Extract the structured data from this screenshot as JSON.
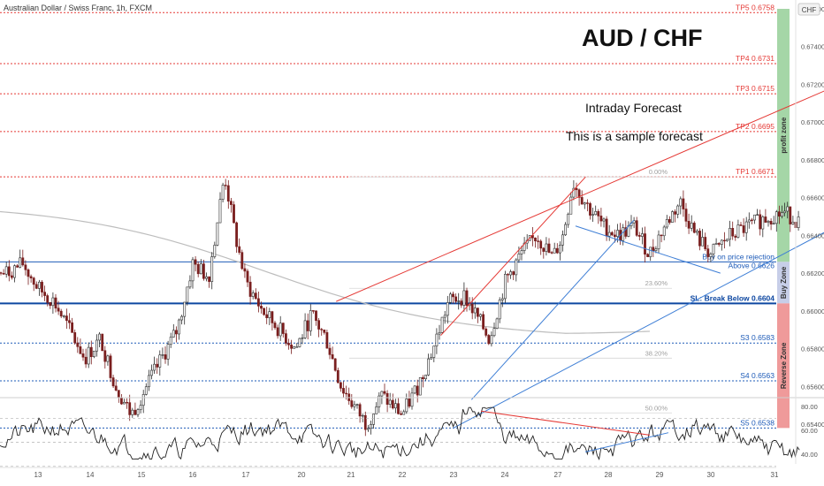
{
  "header": {
    "symbol_line": "Australian Dollar / Swiss Franc, 1h, FXCM",
    "currency_badge": "CHF"
  },
  "annotations": {
    "big_title": "AUD / CHF",
    "subtitle_1": "Intraday Forecast",
    "subtitle_2": "This is a sample forecast"
  },
  "chart_data": [
    {
      "type": "candlestick",
      "title": "AUD / CHF",
      "symbol": "Australian Dollar / Swiss Franc",
      "interval": "1h",
      "source": "FXCM",
      "ylim": [
        0.6535,
        0.676
      ],
      "y_ticks": [
        "0.67600",
        "0.67400",
        "0.67200",
        "0.67000",
        "0.66800",
        "0.66600",
        "0.66400",
        "0.66200",
        "0.66000",
        "0.65800",
        "0.65600",
        "0.65400"
      ],
      "y_tick_values": [
        0.676,
        0.674,
        0.672,
        0.67,
        0.668,
        0.666,
        0.664,
        0.662,
        0.66,
        0.658,
        0.656,
        0.654
      ],
      "x_ticks": [
        "13",
        "14",
        "15",
        "16",
        "17",
        "20",
        "21",
        "22",
        "23",
        "24",
        "27",
        "28",
        "29",
        "30",
        "31"
      ],
      "x_tick_days": [
        13,
        14,
        15,
        16,
        17,
        20,
        21,
        22,
        23,
        24,
        27,
        28,
        29,
        30,
        31
      ],
      "close_path": [
        {
          "d": 12.4,
          "v": 0.662
        },
        {
          "d": 12.7,
          "v": 0.6625
        },
        {
          "d": 13.0,
          "v": 0.6612
        },
        {
          "d": 13.3,
          "v": 0.6605
        },
        {
          "d": 13.6,
          "v": 0.659
        },
        {
          "d": 13.9,
          "v": 0.6575
        },
        {
          "d": 14.2,
          "v": 0.6585
        },
        {
          "d": 14.5,
          "v": 0.656
        },
        {
          "d": 14.8,
          "v": 0.6545
        },
        {
          "d": 15.1,
          "v": 0.656
        },
        {
          "d": 15.4,
          "v": 0.6575
        },
        {
          "d": 15.7,
          "v": 0.659
        },
        {
          "d": 16.0,
          "v": 0.6625
        },
        {
          "d": 16.3,
          "v": 0.6618
        },
        {
          "d": 16.6,
          "v": 0.6672
        },
        {
          "d": 16.8,
          "v": 0.664
        },
        {
          "d": 17.0,
          "v": 0.6615
        },
        {
          "d": 17.3,
          "v": 0.66
        },
        {
          "d": 17.6,
          "v": 0.659
        },
        {
          "d": 17.9,
          "v": 0.658
        },
        {
          "d": 18.2,
          "v": 0.6598
        },
        {
          "d": 18.5,
          "v": 0.6585
        },
        {
          "d": 18.8,
          "v": 0.656
        },
        {
          "d": 19.1,
          "v": 0.6548
        },
        {
          "d": 19.3,
          "v": 0.654
        },
        {
          "d": 19.6,
          "v": 0.6555
        },
        {
          "d": 20.0,
          "v": 0.6545
        },
        {
          "d": 20.3,
          "v": 0.656
        },
        {
          "d": 20.6,
          "v": 0.658
        },
        {
          "d": 20.9,
          "v": 0.6605
        },
        {
          "d": 21.2,
          "v": 0.6608
        },
        {
          "d": 21.5,
          "v": 0.6595
        },
        {
          "d": 21.7,
          "v": 0.6585
        },
        {
          "d": 22.0,
          "v": 0.6615
        },
        {
          "d": 22.3,
          "v": 0.663
        },
        {
          "d": 22.6,
          "v": 0.664
        },
        {
          "d": 22.9,
          "v": 0.6628
        },
        {
          "d": 23.1,
          "v": 0.664
        },
        {
          "d": 23.3,
          "v": 0.6668
        },
        {
          "d": 23.6,
          "v": 0.6655
        },
        {
          "d": 23.9,
          "v": 0.6645
        },
        {
          "d": 24.2,
          "v": 0.664
        },
        {
          "d": 24.5,
          "v": 0.6645
        },
        {
          "d": 24.8,
          "v": 0.663
        },
        {
          "d": 25.1,
          "v": 0.6645
        },
        {
          "d": 25.4,
          "v": 0.6658
        },
        {
          "d": 25.7,
          "v": 0.664
        },
        {
          "d": 26.0,
          "v": 0.663
        },
        {
          "d": 26.3,
          "v": 0.664
        },
        {
          "d": 26.6,
          "v": 0.6645
        },
        {
          "d": 26.9,
          "v": 0.665
        },
        {
          "d": 27.2,
          "v": 0.6652
        },
        {
          "d": 27.5,
          "v": 0.6647
        }
      ],
      "horizontal_levels": [
        {
          "name": "TP5",
          "label": "TP5 0.6758",
          "value": 0.6758,
          "color": "#e53935"
        },
        {
          "name": "TP4",
          "label": "TP4 0.6731",
          "value": 0.6731,
          "color": "#e53935"
        },
        {
          "name": "TP3",
          "label": "TP3 0.6715",
          "value": 0.6715,
          "color": "#e53935"
        },
        {
          "name": "TP2",
          "label": "TP2 0.6695",
          "value": 0.6695,
          "color": "#e53935"
        },
        {
          "name": "TP1",
          "label": "TP1 0.6671",
          "value": 0.6671,
          "color": "#e53935"
        },
        {
          "name": "Buy",
          "label": "Above 0.6626",
          "label_top": "Buy on price rejection",
          "value": 0.6626,
          "color": "#1e5bb8"
        },
        {
          "name": "SL",
          "label": "SL: Break Below 0.6604",
          "value": 0.6604,
          "color": "#0d47a1"
        },
        {
          "name": "S3",
          "label": "S3 0.6583",
          "value": 0.6583,
          "color": "#1e5bb8"
        },
        {
          "name": "S4",
          "label": "S4 0.6563",
          "value": 0.6563,
          "color": "#1e5bb8"
        },
        {
          "name": "S5",
          "label": "S5 0.6538",
          "value": 0.6538,
          "color": "#1e5bb8"
        }
      ],
      "fibonacci_labels": [
        {
          "label": "0.00%",
          "value": 0.6671
        },
        {
          "label": "23.60%",
          "value": 0.6612
        },
        {
          "label": "38.20%",
          "value": 0.6575
        },
        {
          "label": "50.00%",
          "value": 0.6546
        }
      ],
      "zones": [
        {
          "name": "profit-zone",
          "label": "profit zone",
          "from": 0.676,
          "to": 0.6626,
          "color": "#a5d6a7"
        },
        {
          "name": "buy-zone",
          "label": "Buy Zone",
          "from": 0.6626,
          "to": 0.6604,
          "color": "#c7cee8"
        },
        {
          "name": "reverse-zone",
          "label": "Reverse Zone",
          "from": 0.6604,
          "to": 0.6538,
          "color": "#ef9a9a"
        }
      ],
      "forecast_arrows": [
        {
          "from": {
            "d": 29.05,
            "v": 0.6627
          },
          "to": {
            "d": 29.25,
            "v": 0.667
          }
        },
        {
          "from": {
            "d": 29.25,
            "v": 0.6676
          },
          "to": {
            "d": 29.45,
            "v": 0.6695
          }
        },
        {
          "from": {
            "d": 29.45,
            "v": 0.67
          },
          "to": {
            "d": 29.65,
            "v": 0.6715
          }
        },
        {
          "from": {
            "d": 29.65,
            "v": 0.672
          },
          "to": {
            "d": 29.85,
            "v": 0.6732
          }
        },
        {
          "from": {
            "d": 29.85,
            "v": 0.6737
          },
          "to": {
            "d": 30.05,
            "v": 0.6757
          }
        },
        {
          "from": {
            "d": 28.8,
            "v": 0.6604
          },
          "to": {
            "d": 29.05,
            "v": 0.6538
          }
        }
      ]
    },
    {
      "type": "line",
      "title": "",
      "ylim": [
        32,
        85
      ],
      "y_ticks": [
        "80.00",
        "60.00",
        "40.00"
      ],
      "y_tick_values": [
        80,
        60,
        40
      ],
      "guide_levels": [
        70,
        50,
        30
      ]
    }
  ],
  "colors": {
    "bull": "#2b2b2b",
    "bear": "#7a1f1f",
    "red_line": "#e53935",
    "blue_line": "#3f7fd6",
    "forecast_arrow": "#2e7d32",
    "ma_line": "#bdbdbd"
  }
}
